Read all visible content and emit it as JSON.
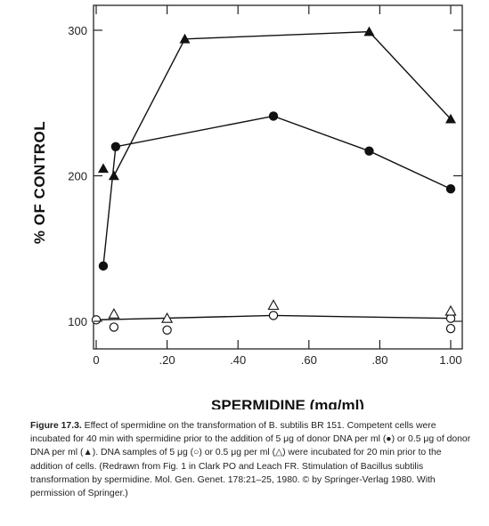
{
  "chart_data": {
    "type": "line",
    "xlabel": "SPERMIDINE (mg/ml)",
    "ylabel": "% OF CONTROL",
    "xlim": [
      0,
      1.0
    ],
    "ylim": [
      95,
      305
    ],
    "x_ticks": [
      0,
      0.2,
      0.4,
      0.6,
      0.8,
      1.0
    ],
    "x_tick_labels": [
      "0",
      ".20",
      ".40",
      ".60",
      ".80",
      "1.00"
    ],
    "y_ticks": [
      100,
      200,
      300
    ],
    "y_tick_labels": [
      "100",
      "200",
      "300"
    ],
    "grid": false,
    "series": [
      {
        "marker": "filled-triangle",
        "connected": true,
        "x": [
          0.05,
          0.25,
          0.77,
          1.0
        ],
        "y": [
          200,
          294,
          299,
          239
        ]
      },
      {
        "marker": "filled-triangle",
        "connected": false,
        "x": [
          0.02
        ],
        "y": [
          205
        ]
      },
      {
        "marker": "filled-circle",
        "connected": true,
        "x": [
          0.02,
          0.055,
          0.5,
          0.77,
          1.0
        ],
        "y": [
          138,
          220,
          241,
          217,
          191
        ]
      },
      {
        "marker": "open-circle",
        "connected": true,
        "x": [
          0,
          0.5,
          1.0
        ],
        "y": [
          101,
          104,
          102
        ]
      },
      {
        "marker": "open-circle",
        "connected": false,
        "x": [
          0.05,
          0.2,
          1.0
        ],
        "y": [
          96,
          94,
          95
        ]
      },
      {
        "marker": "open-triangle",
        "connected": false,
        "x": [
          0.05,
          0.2,
          0.5,
          1.0
        ],
        "y": [
          105,
          102,
          111,
          107
        ]
      }
    ]
  },
  "caption": {
    "label": "Figure 17.3.",
    "text": "Effect of spermidine on the transformation of B. subtilis BR 151. Competent cells were incubated for 40 min with spermidine prior to the addition of 5 μg of donor DNA per ml (●) or 0.5 μg of donor DNA per ml (▲). DNA samples of 5 μg (○) or 0.5 μg per ml (△) were incubated for 20 min prior to the addition of cells. (Redrawn from Fig. 1 in Clark PO and Leach FR. Stimulation of Bacillus subtilis transformation by spermidine. Mol. Gen. Genet. 178:21–25, 1980. © by Springer-Verlag 1980. With permission of Springer.)"
  }
}
